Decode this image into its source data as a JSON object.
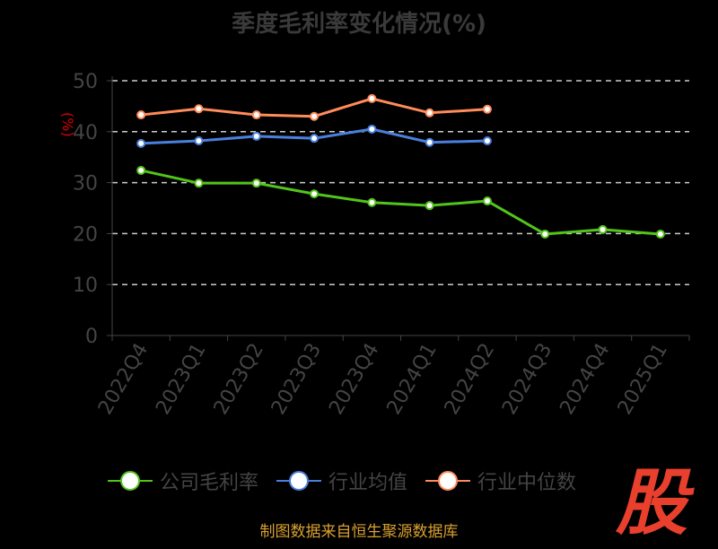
{
  "chart_data": {
    "type": "line",
    "title": "季度毛利率变化情况(%)",
    "ylabel": "(%)",
    "ylim": [
      0,
      50
    ],
    "yticks": [
      0,
      10,
      20,
      30,
      40,
      50
    ],
    "grid": true,
    "legend_position": "bottom",
    "categories": [
      "2022Q4",
      "2023Q1",
      "2023Q2",
      "2023Q3",
      "2023Q4",
      "2024Q1",
      "2024Q2",
      "2024Q3",
      "2024Q4",
      "2025Q1"
    ],
    "series": [
      {
        "name": "公司毛利率",
        "color": "#52c41a",
        "values": [
          32.4,
          29.9,
          29.9,
          27.8,
          26.1,
          25.5,
          26.4,
          19.9,
          20.8,
          19.9
        ]
      },
      {
        "name": "行业均值",
        "color": "#4a7fdc",
        "values": [
          37.7,
          38.2,
          39.1,
          38.7,
          40.5,
          37.9,
          38.2,
          null,
          null,
          null
        ]
      },
      {
        "name": "行业中位数",
        "color": "#ff8c5a",
        "values": [
          43.3,
          44.5,
          43.3,
          43.0,
          46.5,
          43.7,
          44.4,
          null,
          null,
          null
        ]
      }
    ]
  },
  "source": "制图数据来自恒生聚源数据库",
  "logo": "股"
}
